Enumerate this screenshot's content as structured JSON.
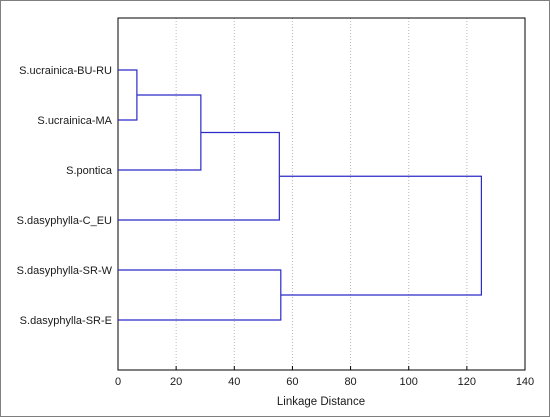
{
  "chart_data": {
    "type": "dendrogram",
    "orientation": "horizontal",
    "xlabel": "Linkage Distance",
    "xlim": [
      0,
      140
    ],
    "xticks": [
      0,
      20,
      40,
      60,
      80,
      100,
      120,
      140
    ],
    "grid": "vertical-dotted",
    "leaves": [
      "S.ucrainica-BU-RU",
      "S.ucrainica-MA",
      "S.pontica",
      "S.dasyphylla-C_EU",
      "S.dasyphylla-SR-W",
      "S.dasyphylla-SR-E"
    ],
    "merges": [
      {
        "a": "leaf:0",
        "b": "leaf:1",
        "distance": 6.5
      },
      {
        "a": "node:0",
        "b": "leaf:2",
        "distance": 28.5
      },
      {
        "a": "node:1",
        "b": "leaf:3",
        "distance": 55.5
      },
      {
        "a": "leaf:4",
        "b": "leaf:5",
        "distance": 56
      },
      {
        "a": "node:2",
        "b": "node:3",
        "distance": 125
      }
    ]
  },
  "colors": {
    "line": "#2b2bc8",
    "grid": "#b8b8b8",
    "axis": "#000000",
    "text": "#1a1a1a"
  }
}
